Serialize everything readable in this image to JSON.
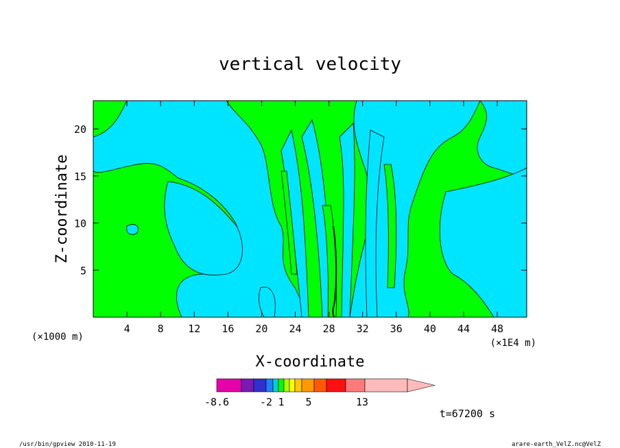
{
  "chart_data": {
    "type": "heatmap",
    "title": "vertical velocity",
    "xlabel": "X-coordinate",
    "ylabel": "Z-coordinate",
    "x_unit_left": "(×1000 m)",
    "x_unit_right": "(×1E4 m)",
    "xlim": [
      0,
      51.5
    ],
    "ylim": [
      0,
      23
    ],
    "x_ticks": [
      "4",
      "8",
      "12",
      "16",
      "20",
      "24",
      "28",
      "32",
      "36",
      "40",
      "44",
      "48"
    ],
    "y_ticks": [
      "5",
      "10",
      "15",
      "20"
    ],
    "x_tick_values": [
      4,
      8,
      12,
      16,
      20,
      24,
      28,
      32,
      36,
      40,
      44,
      48
    ],
    "y_tick_values": [
      5,
      10,
      15,
      20
    ],
    "field_description_colors": {
      "background_band": "#00ff00",
      "main_band": "#00e5ff"
    },
    "colorbar": {
      "colors": [
        "#e600aa",
        "#7a1ab0",
        "#3030d0",
        "#1f7fff",
        "#00cfcf",
        "#00ff00",
        "#a8ff00",
        "#ffff00",
        "#ffc800",
        "#ff9900",
        "#ff5a00",
        "#ff1010",
        "#ff7a7a",
        "#ffbbbb",
        "#ffbbbb"
      ],
      "labels": [
        "-8.6",
        "-2",
        "1",
        "5",
        "13"
      ]
    },
    "time_label": "t=67200 s"
  },
  "footer": {
    "left": "/usr/bin/gpview  2010-11-19",
    "right": "arare-earth_VelZ.nc@VelZ"
  }
}
